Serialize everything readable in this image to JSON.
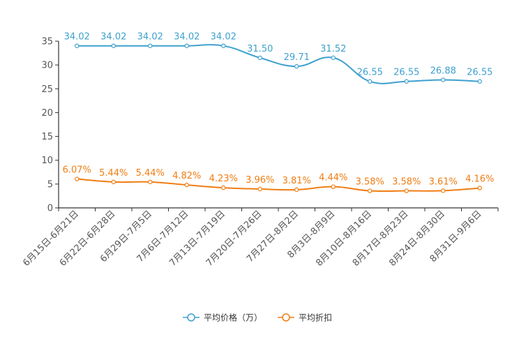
{
  "chart_data": {
    "type": "line",
    "categories": [
      "6月15日-6月21日",
      "6月22日-6月28日",
      "6月29日-7月5日",
      "7月6日-7月12日",
      "7月13日-7月19日",
      "7月20日-7月26日",
      "7月27日-8月2日",
      "8月3日-8月9日",
      "8月10日-8月16日",
      "8月17日-8月23日",
      "8月24日-8月30日",
      "8月31日-9月6日"
    ],
    "series": [
      {
        "name": "平均价格（万）",
        "color": "#3ea0cf",
        "values": [
          34.02,
          34.02,
          34.02,
          34.02,
          34.02,
          31.5,
          29.71,
          31.52,
          26.55,
          26.55,
          26.88,
          26.55
        ],
        "labels": [
          "34.02",
          "34.02",
          "34.02",
          "34.02",
          "34.02",
          "31.50",
          "29.71",
          "31.52",
          "26.55",
          "26.55",
          "26.88",
          "26.55"
        ]
      },
      {
        "name": "平均折扣",
        "color": "#f07d13",
        "values": [
          6.07,
          5.44,
          5.44,
          4.82,
          4.23,
          3.96,
          3.81,
          4.44,
          3.58,
          3.58,
          3.61,
          4.16
        ],
        "labels": [
          "6.07%",
          "5.44%",
          "5.44%",
          "4.82%",
          "4.23%",
          "3.96%",
          "3.81%",
          "4.44%",
          "3.58%",
          "3.58%",
          "3.61%",
          "4.16%"
        ]
      }
    ],
    "ylim": [
      0,
      35
    ],
    "yticks": [
      0,
      5,
      10,
      15,
      20,
      25,
      30,
      35
    ],
    "legend_position": "bottom-center",
    "grid": false,
    "title": "",
    "xlabel": "",
    "ylabel": ""
  }
}
